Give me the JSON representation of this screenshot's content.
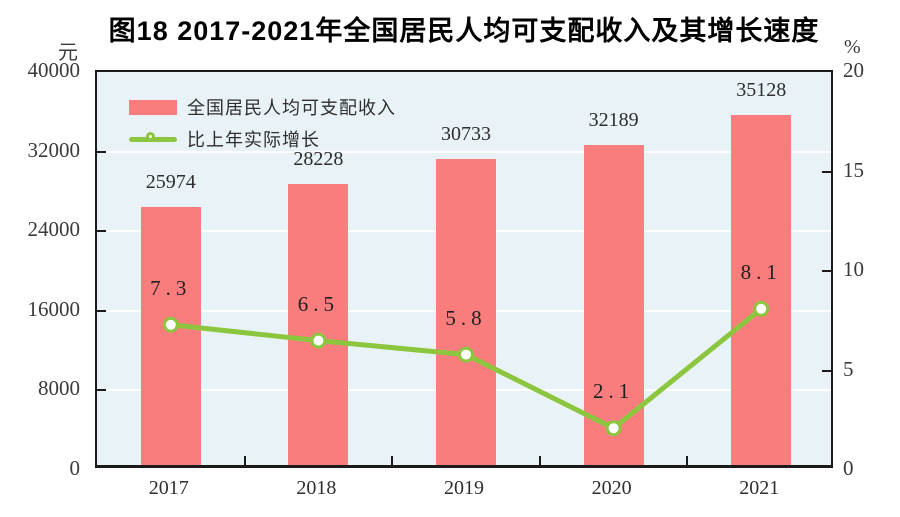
{
  "chart_data": {
    "type": "bar+line",
    "title": "图18  2017-2021年全国居民人均可支配收入及其增长速度",
    "categories": [
      "2017",
      "2018",
      "2019",
      "2020",
      "2021"
    ],
    "series": [
      {
        "name": "全国居民人均可支配收入",
        "type": "bar",
        "axis": "left",
        "values": [
          25974,
          28228,
          30733,
          32189,
          35128
        ]
      },
      {
        "name": "比上年实际增长",
        "type": "line",
        "axis": "right",
        "values": [
          7.3,
          6.5,
          5.8,
          2.1,
          8.1
        ]
      }
    ],
    "left_axis": {
      "unit": "元",
      "min": 0,
      "max": 40000,
      "ticks": [
        0,
        8000,
        16000,
        24000,
        32000,
        40000
      ]
    },
    "right_axis": {
      "unit": "%",
      "min": 0,
      "max": 20,
      "ticks": [
        0,
        5,
        10,
        15,
        20
      ]
    },
    "grid": "horizontal white gridlines at left-axis tick values",
    "legend_position": "top-left inside plot"
  },
  "colors": {
    "bar_fill": "#fa7d7d",
    "line_stroke": "#8cc63f",
    "marker_fill": "#ffffff",
    "plot_background": "#e9f3f7",
    "gridline": "#ffffff",
    "axis_frame": "#1a1a1a",
    "text": "#2e2e2e"
  }
}
